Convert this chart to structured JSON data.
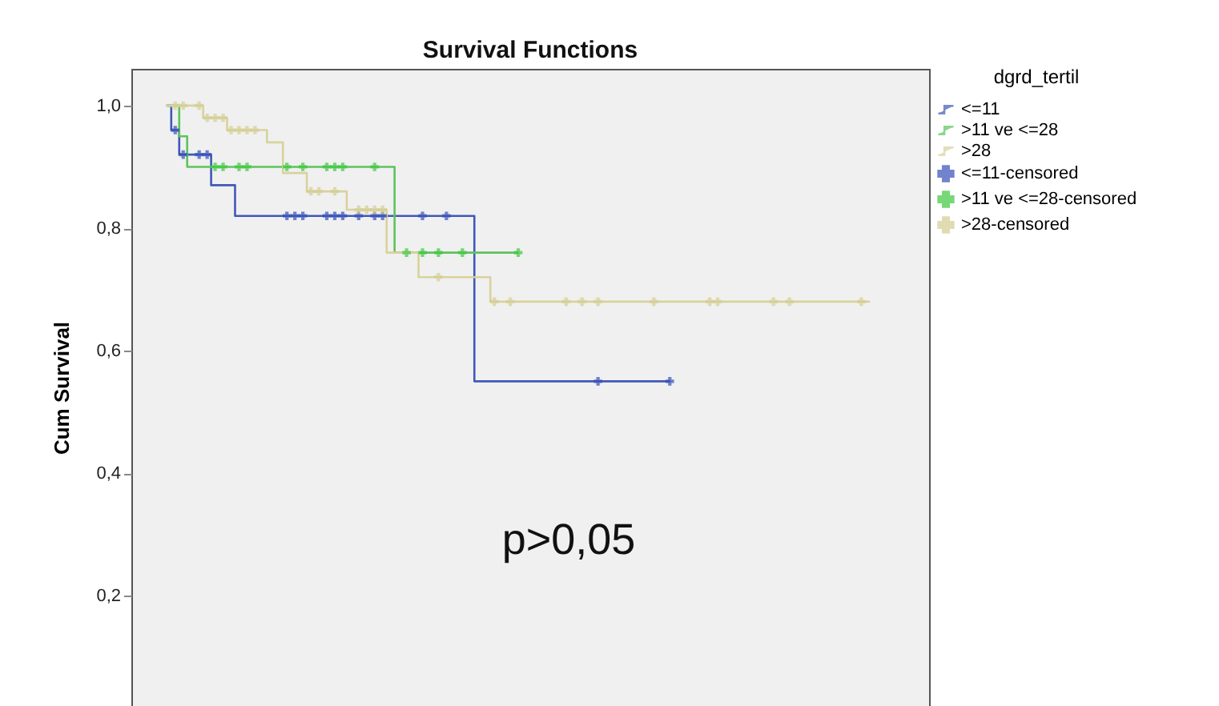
{
  "chart_data": {
    "type": "step",
    "title": "Survival Functions",
    "ylabel": "Cum Survival",
    "legend_title": "dgrd_tertil",
    "legend": "right",
    "tick_labels": "y",
    "annotations": [
      "p>0,05"
    ],
    "ylim": [
      0.02,
      1.06
    ],
    "yticks": [
      {
        "value": 0.2,
        "label": "0,2"
      },
      {
        "value": 0.4,
        "label": "0,4"
      },
      {
        "value": 0.6,
        "label": "0,6"
      },
      {
        "value": 0.8,
        "label": "0,8"
      },
      {
        "value": 1.0,
        "label": "1,0"
      }
    ],
    "categories": [
      null,
      null,
      null,
      null,
      null,
      null,
      null,
      null,
      null,
      null,
      null,
      null,
      null,
      null,
      null,
      null,
      null,
      null,
      null,
      null,
      null,
      null,
      null,
      null,
      null,
      null,
      null,
      null,
      null,
      null,
      null,
      null,
      null,
      null,
      null,
      null,
      null,
      null,
      null,
      null,
      null,
      null,
      null,
      null,
      null,
      null,
      null,
      null,
      null,
      null,
      null,
      null,
      null,
      null,
      null,
      null,
      null,
      null,
      null,
      null,
      null,
      null,
      null,
      null,
      null,
      null,
      null,
      null,
      null,
      null,
      null,
      null,
      null,
      null,
      null,
      null,
      null,
      null,
      null,
      null,
      null,
      null,
      null,
      null,
      null,
      null,
      null,
      null,
      null
    ],
    "series": [
      {
        "name": "<=11",
        "color": "#4058b8",
        "values": [
          1.0,
          0.96,
          0.92,
          0.92,
          0.92,
          0.92,
          0.87,
          0.87,
          0.87,
          0.82,
          0.82,
          0.82,
          0.82,
          0.82,
          0.82,
          0.82,
          0.82,
          0.82,
          0.82,
          0.82,
          0.82,
          0.82,
          0.82,
          0.82,
          0.82,
          0.82,
          0.82,
          0.82,
          0.82,
          0.82,
          0.82,
          0.82,
          0.82,
          0.82,
          0.82,
          0.82,
          0.82,
          0.82,
          0.82,
          0.55,
          0.55,
          0.55,
          0.55,
          0.55,
          0.55,
          0.55,
          0.55,
          0.55,
          0.55,
          0.55,
          0.55,
          0.55,
          0.55,
          0.55,
          0.55,
          0.55,
          0.55,
          0.55,
          0.55,
          0.55,
          0.55,
          0.55,
          0.55,
          0.55,
          null,
          null,
          null,
          null,
          null,
          null,
          null,
          null,
          null,
          null,
          null,
          null,
          null,
          null,
          null,
          null,
          null,
          null,
          null,
          null,
          null,
          null,
          null,
          null,
          null
        ]
      },
      {
        "name": ">11 ve <=28",
        "color": "#5cc45c",
        "values": [
          1.0,
          1.0,
          0.95,
          0.9,
          0.9,
          0.9,
          0.9,
          0.9,
          0.9,
          0.9,
          0.9,
          0.9,
          0.9,
          0.9,
          0.9,
          0.9,
          0.9,
          0.9,
          0.9,
          0.9,
          0.9,
          0.9,
          0.9,
          0.9,
          0.9,
          0.9,
          0.9,
          0.9,
          0.9,
          0.76,
          0.76,
          0.76,
          0.76,
          0.76,
          0.76,
          0.76,
          0.76,
          0.76,
          0.76,
          0.76,
          0.76,
          0.76,
          0.76,
          0.76,
          0.76,
          null,
          null,
          null,
          null,
          null,
          null,
          null,
          null,
          null,
          null,
          null,
          null,
          null,
          null,
          null,
          null,
          null,
          null,
          null,
          null,
          null,
          null,
          null,
          null,
          null,
          null,
          null,
          null,
          null,
          null,
          null,
          null,
          null,
          null,
          null,
          null,
          null,
          null,
          null,
          null,
          null,
          null,
          null,
          null
        ]
      },
      {
        "name": ">28",
        "color": "#d8d29c",
        "values": [
          1.0,
          1.0,
          1.0,
          1.0,
          1.0,
          0.98,
          0.98,
          0.98,
          0.96,
          0.96,
          0.96,
          0.96,
          0.96,
          0.94,
          0.94,
          0.89,
          0.89,
          0.89,
          0.86,
          0.86,
          0.86,
          0.86,
          0.86,
          0.83,
          0.83,
          0.83,
          0.83,
          0.83,
          0.76,
          0.76,
          0.76,
          0.76,
          0.72,
          0.72,
          0.72,
          0.72,
          0.72,
          0.72,
          0.72,
          0.72,
          0.72,
          0.68,
          0.68,
          0.68,
          0.68,
          0.68,
          0.68,
          0.68,
          0.68,
          0.68,
          0.68,
          0.68,
          0.68,
          0.68,
          0.68,
          0.68,
          0.68,
          0.68,
          0.68,
          0.68,
          0.68,
          0.68,
          0.68,
          0.68,
          0.68,
          0.68,
          0.68,
          0.68,
          0.68,
          0.68,
          0.68,
          0.68,
          0.68,
          0.68,
          0.68,
          0.68,
          0.68,
          0.68,
          0.68,
          0.68,
          0.68,
          0.68,
          0.68,
          0.68,
          0.68,
          0.68,
          0.68,
          0.68,
          0.68
        ]
      },
      {
        "name": "<=11-censored",
        "type": "scatter",
        "marker": "cross",
        "color": "#3650b8",
        "values": [
          null,
          0.96,
          0.92,
          null,
          0.92,
          0.92,
          null,
          null,
          null,
          null,
          null,
          null,
          null,
          null,
          null,
          0.82,
          0.82,
          0.82,
          null,
          null,
          0.82,
          0.82,
          0.82,
          null,
          0.82,
          null,
          0.82,
          0.82,
          null,
          null,
          null,
          null,
          0.82,
          null,
          null,
          0.82,
          null,
          null,
          null,
          null,
          null,
          null,
          null,
          null,
          null,
          null,
          null,
          null,
          null,
          null,
          null,
          null,
          null,
          null,
          0.55,
          null,
          null,
          null,
          null,
          null,
          null,
          null,
          null,
          0.55,
          null,
          null,
          null,
          null,
          null,
          null,
          null,
          null,
          null,
          null,
          null,
          null,
          null,
          null,
          null,
          null,
          null,
          null,
          null,
          null,
          null,
          null,
          null,
          null,
          null
        ]
      },
      {
        "name": ">11 ve <=28-censored",
        "type": "scatter",
        "marker": "cross",
        "color": "#3ec83e",
        "values": [
          null,
          null,
          null,
          null,
          null,
          null,
          0.9,
          0.9,
          null,
          0.9,
          0.9,
          null,
          null,
          null,
          null,
          0.9,
          null,
          0.9,
          null,
          null,
          0.9,
          0.9,
          0.9,
          null,
          null,
          null,
          0.9,
          null,
          null,
          null,
          0.76,
          null,
          0.76,
          null,
          0.76,
          null,
          null,
          0.76,
          null,
          null,
          null,
          null,
          null,
          null,
          0.76,
          null,
          null,
          null,
          null,
          null,
          null,
          null,
          null,
          null,
          null,
          null,
          null,
          null,
          null,
          null,
          null,
          null,
          null,
          null,
          null,
          null,
          null,
          null,
          null,
          null,
          null,
          null,
          null,
          null,
          null,
          null,
          null,
          null,
          null,
          null,
          null,
          null,
          null,
          null,
          null,
          null,
          null,
          null,
          null
        ]
      },
      {
        "name": ">28-censored",
        "type": "scatter",
        "marker": "cross",
        "color": "#d4cd94",
        "values": [
          null,
          1.0,
          1.0,
          null,
          1.0,
          0.98,
          0.98,
          0.98,
          0.96,
          0.96,
          0.96,
          0.96,
          null,
          null,
          null,
          null,
          null,
          null,
          0.86,
          0.86,
          null,
          0.86,
          null,
          null,
          0.83,
          0.83,
          0.83,
          0.83,
          null,
          null,
          null,
          null,
          null,
          null,
          0.72,
          null,
          null,
          null,
          null,
          null,
          null,
          0.68,
          null,
          0.68,
          null,
          null,
          null,
          null,
          null,
          null,
          0.68,
          null,
          0.68,
          null,
          0.68,
          null,
          null,
          null,
          null,
          null,
          null,
          0.68,
          null,
          null,
          null,
          null,
          null,
          null,
          0.68,
          0.68,
          null,
          null,
          null,
          null,
          null,
          null,
          0.68,
          null,
          0.68,
          null,
          null,
          null,
          null,
          null,
          null,
          null,
          null,
          0.68,
          null
        ]
      }
    ]
  }
}
